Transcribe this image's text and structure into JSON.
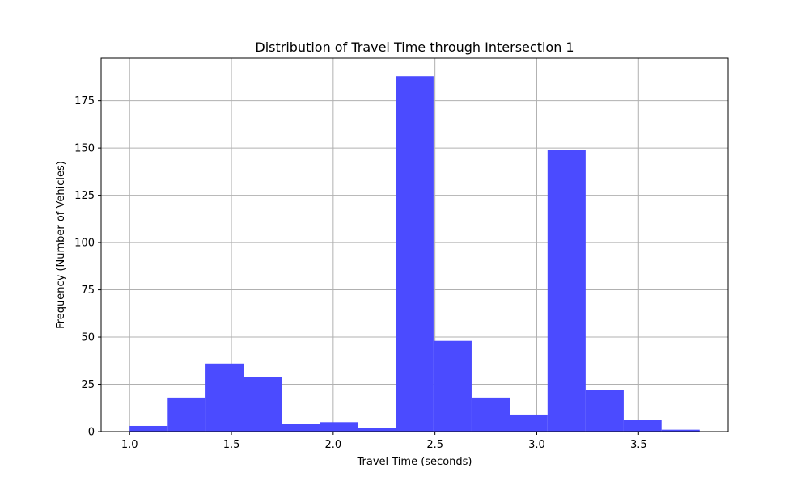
{
  "chart_data": {
    "type": "bar",
    "title": "Distribution of Travel Time through Intersection 1",
    "xlabel": "Travel Time (seconds)",
    "ylabel": "Frequency (Number of Vehicles)",
    "xlim": [
      0.86,
      3.94
    ],
    "ylim": [
      0,
      197.5
    ],
    "xticks": [
      1.0,
      1.5,
      2.0,
      2.5,
      3.0,
      3.5
    ],
    "xtick_labels": [
      "1.0",
      "1.5",
      "2.0",
      "2.5",
      "3.0",
      "3.5"
    ],
    "yticks": [
      0,
      25,
      50,
      75,
      100,
      125,
      150,
      175
    ],
    "ytick_labels": [
      "0",
      "25",
      "50",
      "75",
      "100",
      "125",
      "150",
      "175"
    ],
    "grid": true,
    "bar_color": "#4b4bff",
    "bins": [
      {
        "x0": 1.0,
        "x1": 1.187,
        "count": 3
      },
      {
        "x0": 1.187,
        "x1": 1.373,
        "count": 18
      },
      {
        "x0": 1.373,
        "x1": 1.56,
        "count": 36
      },
      {
        "x0": 1.56,
        "x1": 1.747,
        "count": 29
      },
      {
        "x0": 1.747,
        "x1": 1.933,
        "count": 4
      },
      {
        "x0": 1.933,
        "x1": 2.12,
        "count": 5
      },
      {
        "x0": 2.12,
        "x1": 2.307,
        "count": 2
      },
      {
        "x0": 2.307,
        "x1": 2.493,
        "count": 188
      },
      {
        "x0": 2.493,
        "x1": 2.68,
        "count": 48
      },
      {
        "x0": 2.68,
        "x1": 2.867,
        "count": 18
      },
      {
        "x0": 2.867,
        "x1": 3.053,
        "count": 9
      },
      {
        "x0": 3.053,
        "x1": 3.24,
        "count": 149
      },
      {
        "x0": 3.24,
        "x1": 3.427,
        "count": 22
      },
      {
        "x0": 3.427,
        "x1": 3.613,
        "count": 6
      },
      {
        "x0": 3.613,
        "x1": 3.8,
        "count": 1
      }
    ]
  }
}
